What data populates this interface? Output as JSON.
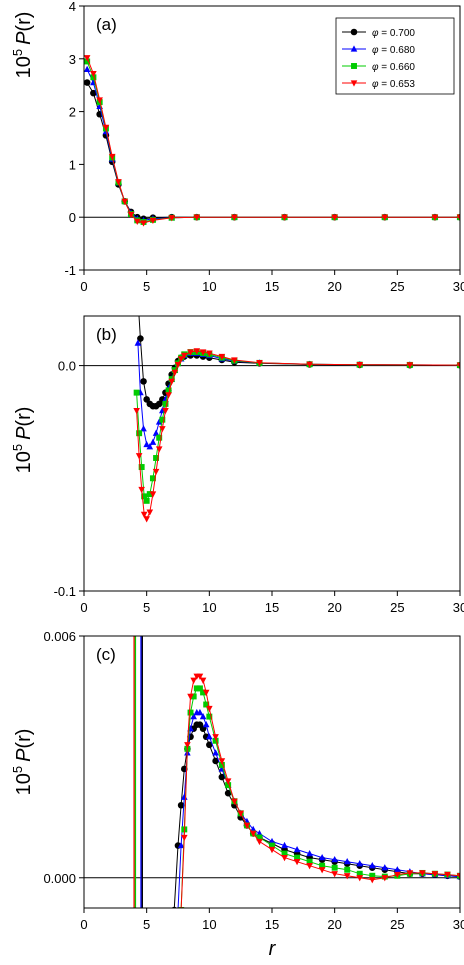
{
  "chart_data": [
    {
      "type": "line",
      "panel_label": "(a)",
      "ylabel": "10",
      "ylabel_sup": "5",
      "ylabel_func": "P",
      "ylabel_arg": "(r)",
      "xlim": [
        0,
        30
      ],
      "ylim": [
        -1,
        4
      ],
      "xticks": [
        "0",
        "5",
        "10",
        "15",
        "20",
        "25",
        "30"
      ],
      "yticks": [
        "-1",
        "0",
        "1",
        "2",
        "3",
        "4"
      ],
      "legend": {
        "placement": "top-right",
        "prefix": "φ",
        "entries": [
          "= 0.700",
          "= 0.680",
          "= 0.660",
          "= 0.653"
        ]
      },
      "series": [
        {
          "name": "φ = 0.700",
          "color": "#000000",
          "marker": "circle",
          "x": [
            0.25,
            0.75,
            1.25,
            1.75,
            2.25,
            2.75,
            3.25,
            3.75,
            4.25,
            4.75,
            5.5,
            7,
            9,
            12,
            16,
            20,
            24,
            28,
            30
          ],
          "y": [
            2.55,
            2.35,
            1.95,
            1.55,
            1.05,
            0.62,
            0.3,
            0.1,
            0.0,
            -0.03,
            -0.01,
            0,
            0,
            0,
            0,
            0,
            0,
            0,
            0
          ]
        },
        {
          "name": "φ = 0.680",
          "color": "#0000ff",
          "marker": "triangle-up",
          "x": [
            0.25,
            0.75,
            1.25,
            1.75,
            2.25,
            2.75,
            3.25,
            3.75,
            4.25,
            4.75,
            5.5,
            7,
            9,
            12,
            16,
            20,
            24,
            28,
            30
          ],
          "y": [
            2.8,
            2.55,
            2.1,
            1.62,
            1.1,
            0.65,
            0.3,
            0.08,
            -0.03,
            -0.06,
            -0.03,
            -0.01,
            0,
            0,
            0,
            0,
            0,
            0,
            0
          ]
        },
        {
          "name": "φ = 0.660",
          "color": "#00cc00",
          "marker": "square",
          "x": [
            0.25,
            0.75,
            1.25,
            1.75,
            2.25,
            2.75,
            3.25,
            3.75,
            4.25,
            4.75,
            5.5,
            7,
            9,
            12,
            16,
            20,
            24,
            28,
            30
          ],
          "y": [
            2.95,
            2.65,
            2.18,
            1.68,
            1.13,
            0.66,
            0.3,
            0.06,
            -0.06,
            -0.09,
            -0.05,
            -0.01,
            0,
            0,
            0,
            0,
            0,
            0,
            0
          ]
        },
        {
          "name": "φ = 0.653",
          "color": "#ff0000",
          "marker": "triangle-down",
          "x": [
            0.25,
            0.75,
            1.25,
            1.75,
            2.25,
            2.75,
            3.25,
            3.75,
            4.25,
            4.75,
            5.5,
            7,
            9,
            12,
            16,
            20,
            24,
            28,
            30
          ],
          "y": [
            3.02,
            2.72,
            2.22,
            1.7,
            1.15,
            0.67,
            0.3,
            0.05,
            -0.08,
            -0.11,
            -0.06,
            -0.01,
            0,
            0,
            0,
            0,
            0,
            0,
            0
          ]
        }
      ]
    },
    {
      "type": "line",
      "panel_label": "(b)",
      "ylabel": "10",
      "ylabel_sup": "5",
      "ylabel_func": "P",
      "ylabel_arg": "(r)",
      "xlim": [
        0,
        30
      ],
      "ylim": [
        -0.1,
        0.022
      ],
      "xticks": [
        "0",
        "5",
        "10",
        "15",
        "20",
        "25",
        "30"
      ],
      "yticks": [
        "-0.1",
        "0.0"
      ],
      "series": [
        {
          "name": "φ = 0.700",
          "color": "#000000",
          "marker": "circle",
          "x": [
            4.3,
            4.5,
            4.75,
            5.0,
            5.25,
            5.5,
            5.75,
            6.0,
            6.25,
            6.5,
            6.75,
            7.0,
            7.25,
            7.5,
            7.75,
            8.0,
            8.5,
            9.0,
            9.5,
            10,
            11,
            12,
            14,
            18,
            22,
            26,
            30
          ],
          "y": [
            0.03,
            0.012,
            -0.007,
            -0.015,
            -0.017,
            -0.018,
            -0.018,
            -0.017,
            -0.015,
            -0.012,
            -0.008,
            -0.004,
            -0.001,
            0.002,
            0.0035,
            0.004,
            0.0045,
            0.0045,
            0.004,
            0.0035,
            0.0025,
            0.0015,
            0.001,
            0.0005,
            0.0003,
            0.0002,
            0.0002
          ]
        },
        {
          "name": "φ = 0.680",
          "color": "#0000ff",
          "marker": "triangle-up",
          "x": [
            4.3,
            4.5,
            4.75,
            5.0,
            5.25,
            5.5,
            5.75,
            6.0,
            6.25,
            6.5,
            6.75,
            7.0,
            7.25,
            7.5,
            7.75,
            8.0,
            8.5,
            9.0,
            9.5,
            10,
            11,
            12,
            14,
            18,
            22,
            26,
            30
          ],
          "y": [
            0.01,
            -0.012,
            -0.028,
            -0.035,
            -0.036,
            -0.034,
            -0.03,
            -0.025,
            -0.02,
            -0.015,
            -0.01,
            -0.006,
            -0.002,
            0.001,
            0.003,
            0.0045,
            0.0055,
            0.0055,
            0.005,
            0.0045,
            0.003,
            0.002,
            0.0012,
            0.0006,
            0.0004,
            0.0003,
            0.0002
          ]
        },
        {
          "name": "φ = 0.660",
          "color": "#00cc00",
          "marker": "square",
          "x": [
            4.2,
            4.4,
            4.6,
            4.8,
            5.0,
            5.25,
            5.5,
            5.75,
            6.0,
            6.25,
            6.5,
            6.75,
            7.0,
            7.25,
            7.5,
            7.75,
            8.0,
            8.5,
            9.0,
            9.5,
            10,
            11,
            12,
            14,
            18,
            22,
            26,
            30
          ],
          "y": [
            -0.012,
            -0.03,
            -0.045,
            -0.058,
            -0.06,
            -0.057,
            -0.05,
            -0.041,
            -0.032,
            -0.024,
            -0.017,
            -0.011,
            -0.006,
            -0.002,
            0.001,
            0.0035,
            0.005,
            0.006,
            0.006,
            0.0055,
            0.005,
            0.0035,
            0.0022,
            0.0012,
            0.0006,
            0.0004,
            0.0003,
            0.0002
          ]
        },
        {
          "name": "φ = 0.653",
          "color": "#ff0000",
          "marker": "triangle-down",
          "x": [
            4.2,
            4.4,
            4.6,
            4.8,
            5.0,
            5.25,
            5.5,
            5.75,
            6.0,
            6.25,
            6.5,
            6.75,
            7.0,
            7.25,
            7.5,
            7.75,
            8.0,
            8.5,
            9.0,
            9.5,
            10,
            11,
            12,
            14,
            18,
            22,
            26,
            30
          ],
          "y": [
            -0.02,
            -0.04,
            -0.055,
            -0.066,
            -0.068,
            -0.065,
            -0.057,
            -0.047,
            -0.037,
            -0.028,
            -0.02,
            -0.013,
            -0.007,
            -0.003,
            0.0005,
            0.003,
            0.0045,
            0.006,
            0.0065,
            0.006,
            0.0055,
            0.004,
            0.0025,
            0.0013,
            0.0006,
            0.0004,
            0.0003,
            0.0002
          ]
        }
      ]
    },
    {
      "type": "line",
      "panel_label": "(c)",
      "ylabel": "10",
      "ylabel_sup": "5",
      "ylabel_func": "P",
      "ylabel_arg": "(r)",
      "xlim": [
        0,
        30
      ],
      "ylim": [
        -0.00075,
        0.006
      ],
      "xticks": [
        "0",
        "5",
        "10",
        "15",
        "20",
        "25",
        "30"
      ],
      "yticks": [
        "0.000",
        "0.006"
      ],
      "series": [
        {
          "name": "φ = 0.700",
          "color": "#000000",
          "marker": "circle",
          "x": [
            7.2,
            7.5,
            7.75,
            8.0,
            8.25,
            8.5,
            8.75,
            9.0,
            9.25,
            9.5,
            9.75,
            10,
            10.5,
            11,
            11.5,
            12,
            12.5,
            13,
            13.5,
            14,
            15,
            16,
            17,
            18,
            19,
            20,
            21,
            22,
            23,
            24,
            25,
            26,
            27,
            28,
            29,
            30
          ],
          "y": [
            -0.0008,
            0.0008,
            0.0018,
            0.0027,
            0.0032,
            0.0035,
            0.0037,
            0.0038,
            0.0038,
            0.0037,
            0.0035,
            0.0033,
            0.0029,
            0.0025,
            0.0021,
            0.0018,
            0.0015,
            0.0013,
            0.0011,
            0.001,
            0.00085,
            0.0007,
            0.0006,
            0.0005,
            0.00045,
            0.0004,
            0.00035,
            0.0003,
            0.00025,
            0.0002,
            0.00015,
            0.0001,
            0.0001,
            8e-05,
            5e-05,
            3e-05
          ]
        },
        {
          "name": "φ = 0.680",
          "color": "#0000ff",
          "marker": "triangle-up",
          "x": [
            7.5,
            7.75,
            8.0,
            8.25,
            8.5,
            8.75,
            9.0,
            9.25,
            9.5,
            9.75,
            10,
            10.5,
            11,
            11.5,
            12,
            12.5,
            13,
            13.5,
            14,
            15,
            16,
            17,
            18,
            19,
            20,
            21,
            22,
            23,
            24,
            25,
            26,
            27,
            28,
            29,
            30
          ],
          "y": [
            -0.0008,
            0.0008,
            0.002,
            0.0031,
            0.0037,
            0.004,
            0.0041,
            0.0041,
            0.004,
            0.0038,
            0.0035,
            0.0031,
            0.0027,
            0.0023,
            0.0019,
            0.0016,
            0.0014,
            0.0012,
            0.0011,
            0.0009,
            0.0008,
            0.0007,
            0.0006,
            0.0005,
            0.00045,
            0.0004,
            0.00035,
            0.0003,
            0.00025,
            0.0002,
            0.00015,
            0.0001,
            8e-05,
            5e-05,
            3e-05
          ]
        },
        {
          "name": "φ = 0.660",
          "color": "#00cc00",
          "marker": "square",
          "x": [
            7.75,
            8.0,
            8.25,
            8.5,
            8.75,
            9.0,
            9.25,
            9.5,
            9.75,
            10,
            10.5,
            11,
            11.5,
            12,
            12.5,
            13,
            13.5,
            14,
            15,
            16,
            17,
            18,
            19,
            20,
            21,
            22,
            23,
            24,
            25,
            26,
            27,
            28,
            29,
            30
          ],
          "y": [
            -0.0008,
            0.0012,
            0.0032,
            0.0041,
            0.0045,
            0.0047,
            0.0047,
            0.0046,
            0.0043,
            0.004,
            0.0034,
            0.0028,
            0.0023,
            0.0019,
            0.0016,
            0.0013,
            0.0011,
            0.001,
            0.0008,
            0.0006,
            0.0005,
            0.0004,
            0.0003,
            0.00025,
            0.0002,
            0.0001,
            5e-05,
            3e-05,
            5e-05,
            0.0001,
            0.00012,
            0.0001,
            8e-05,
            5e-05
          ]
        },
        {
          "name": "φ = 0.653",
          "color": "#ff0000",
          "marker": "triangle-down",
          "x": [
            7.75,
            8.0,
            8.25,
            8.5,
            8.75,
            9.0,
            9.25,
            9.5,
            9.75,
            10,
            10.5,
            11,
            11.5,
            12,
            12.5,
            13,
            13.5,
            14,
            15,
            16,
            17,
            18,
            19,
            20,
            21,
            22,
            23,
            24,
            25,
            26,
            27,
            28,
            29,
            30
          ],
          "y": [
            -0.0008,
            0.001,
            0.0033,
            0.0045,
            0.0049,
            0.005,
            0.005,
            0.0049,
            0.0046,
            0.0042,
            0.0035,
            0.0029,
            0.0024,
            0.0019,
            0.0016,
            0.0013,
            0.0011,
            0.0009,
            0.0007,
            0.0005,
            0.0004,
            0.0003,
            0.0002,
            0.0001,
            5e-05,
            0.0,
            -5e-05,
            0.0,
            8e-05,
            0.00012,
            0.00012,
            0.0001,
            8e-05,
            5e-05
          ]
        }
      ],
      "vertical_lines": [
        {
          "x": 4.0,
          "color": "#ff0000"
        },
        {
          "x": 4.1,
          "color": "#00cc00"
        },
        {
          "x": 4.55,
          "color": "#0000ff"
        },
        {
          "x": 4.65,
          "color": "#000000"
        }
      ]
    }
  ],
  "xlabel": "r"
}
